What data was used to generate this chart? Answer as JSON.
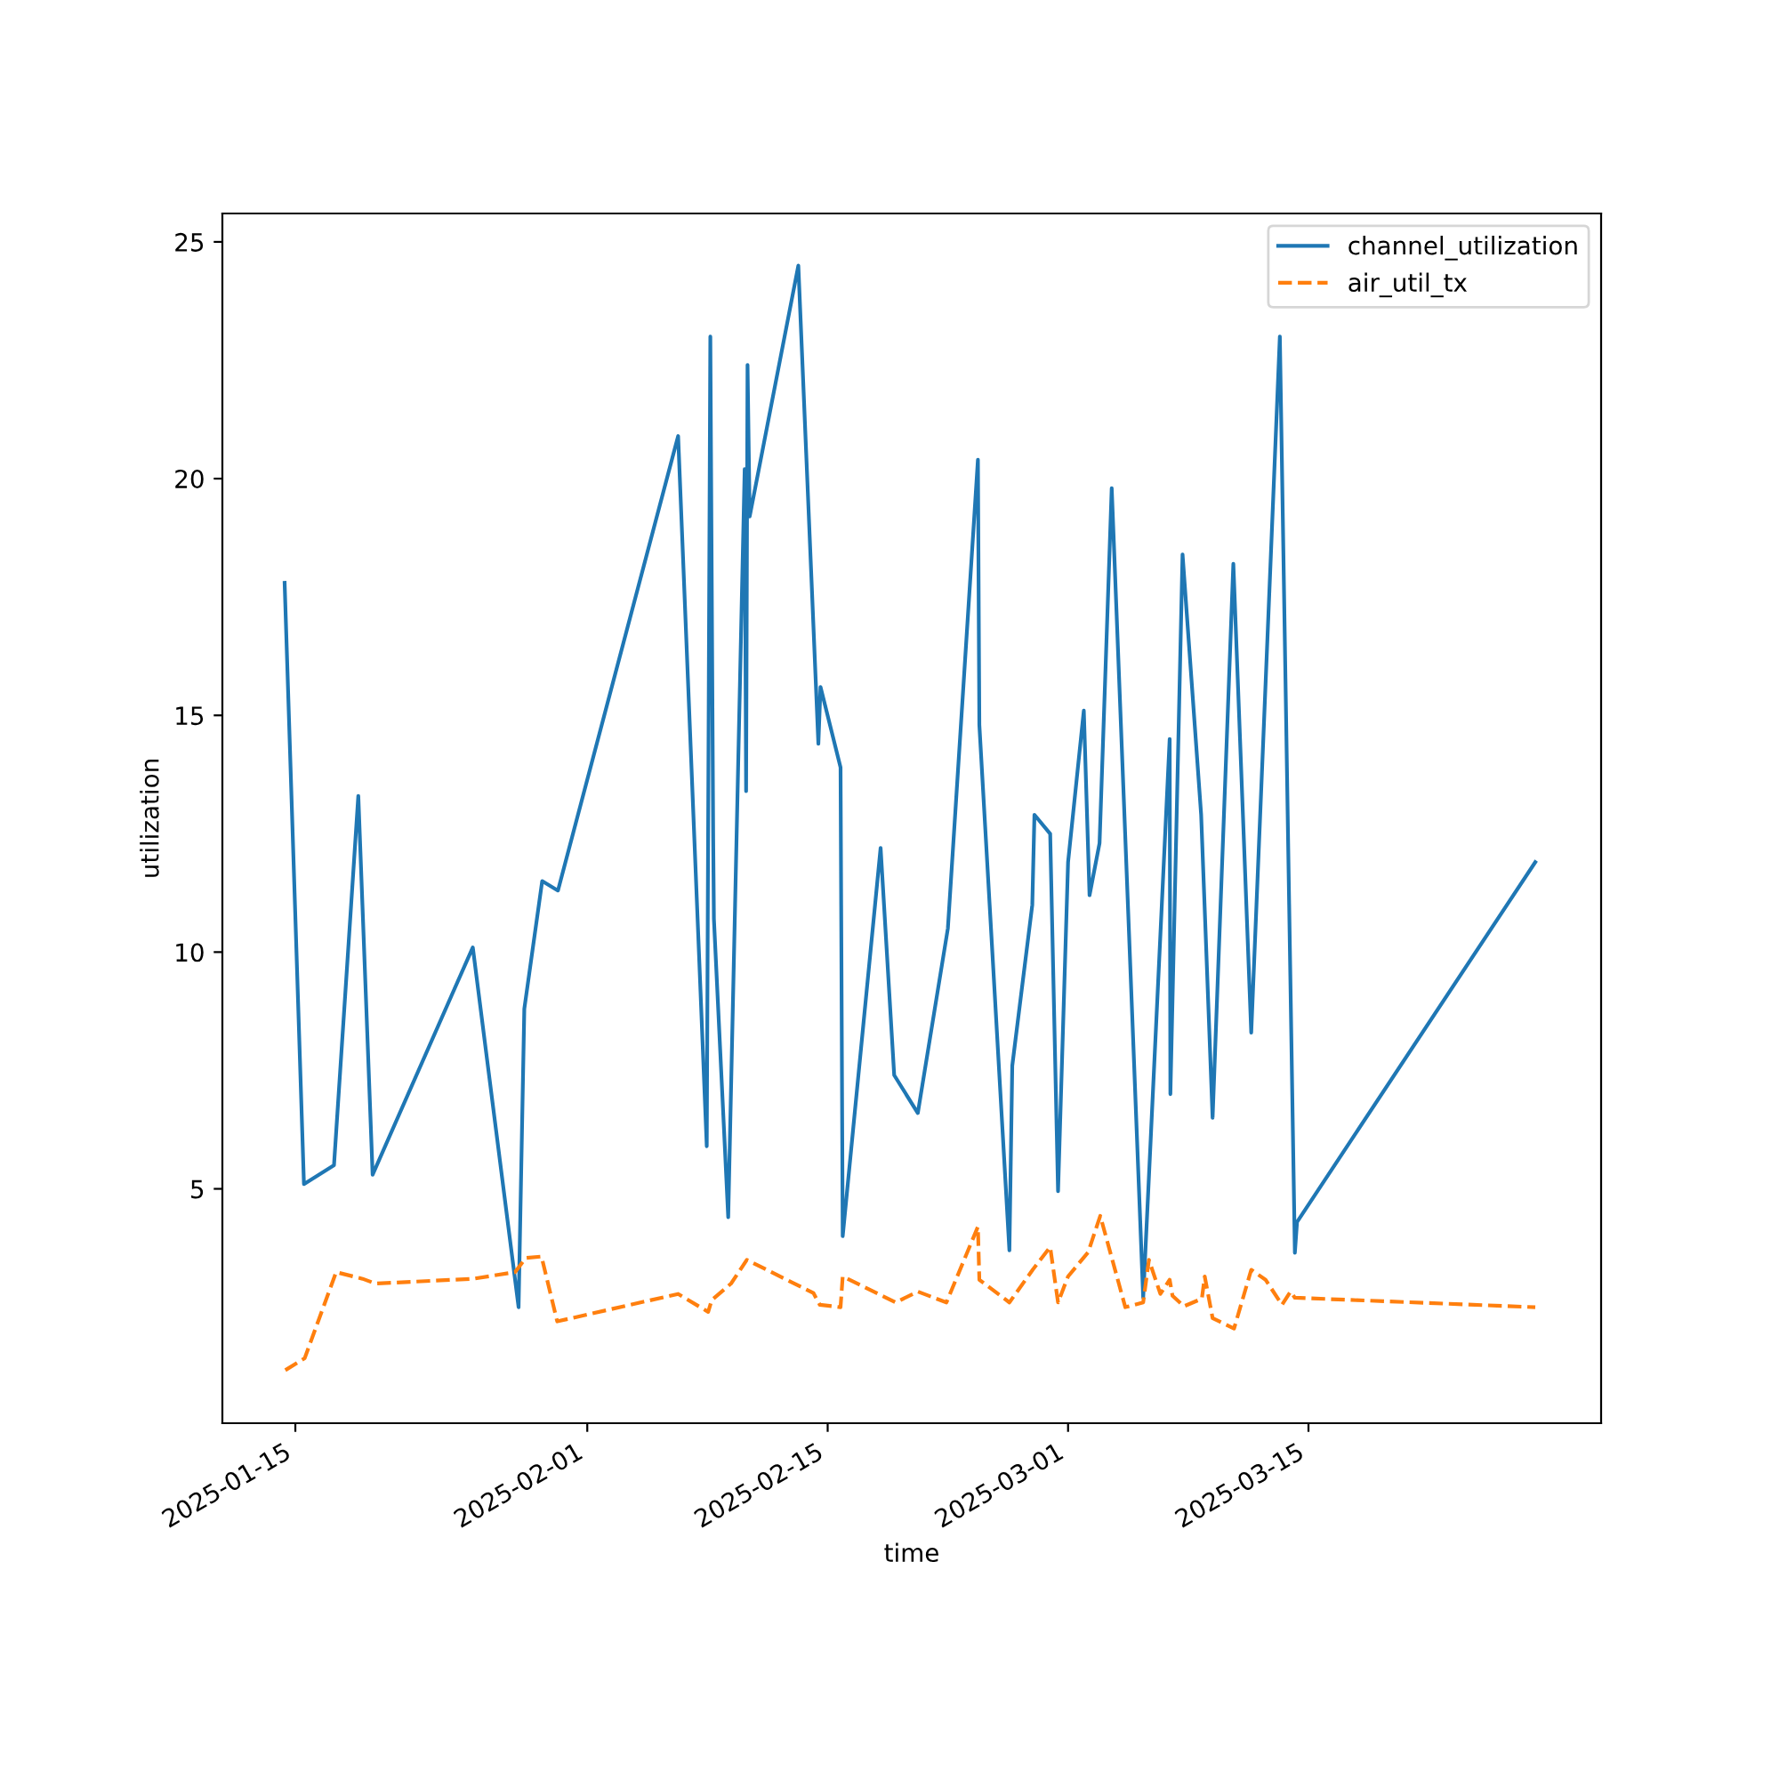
{
  "chart_data": {
    "type": "line",
    "xlabel": "time",
    "ylabel": "utilization",
    "xlim": [
      "2025-01-10T18:00",
      "2025-04-01T01:00"
    ],
    "xticks": [
      "2025-01-15",
      "2025-02-01",
      "2025-02-15",
      "2025-03-01",
      "2025-03-15"
    ],
    "ylim": [
      0.05,
      25.6
    ],
    "yticks": [
      5,
      10,
      15,
      20,
      25
    ],
    "grid": false,
    "legend": "top right",
    "series": [
      {
        "name": "channel_utilization",
        "color": "#1f77b4",
        "line_style": "solid",
        "x": [
          "2025-01-14T09:00",
          "2025-01-15T12:00",
          "2025-01-17T06:00",
          "2025-01-18T16:00",
          "2025-01-19T12:00",
          "2025-01-25T08:00",
          "2025-01-28T00:00",
          "2025-01-28T08:00",
          "2025-01-29T09:00",
          "2025-01-30T07:00",
          "2025-02-06T07:00",
          "2025-02-07T23:00",
          "2025-02-08T04:00",
          "2025-02-08T08:00",
          "2025-02-08T09:00",
          "2025-02-09T05:00",
          "2025-02-10T04:00",
          "2025-02-10T06:00",
          "2025-02-10T08:00",
          "2025-02-10T11:00",
          "2025-02-13T07:00",
          "2025-02-14T11:00",
          "2025-02-14T14:00",
          "2025-02-15T18:00",
          "2025-02-15T21:00",
          "2025-02-18T02:00",
          "2025-02-18T21:00",
          "2025-02-20T06:00",
          "2025-02-22T00:00",
          "2025-02-23T18:00",
          "2025-02-23T20:00",
          "2025-02-25T14:00",
          "2025-02-25T18:00",
          "2025-02-26T22:00",
          "2025-02-27T01:00",
          "2025-02-27T23:00",
          "2025-02-28T10:00",
          "2025-03-01T00:00",
          "2025-03-01T22:00",
          "2025-03-02T06:00",
          "2025-03-02T20:00",
          "2025-03-03T13:00",
          "2025-03-05T09:00",
          "2025-03-06T22:00",
          "2025-03-06T23:00",
          "2025-03-07T16:00",
          "2025-03-08T18:00",
          "2025-03-09T10:00",
          "2025-03-10T15:00",
          "2025-03-11T16:00",
          "2025-03-13T08:00",
          "2025-03-14T05:00",
          "2025-03-14T08:00",
          "2025-03-28T05:00"
        ],
        "values": [
          17.8,
          5.1,
          5.5,
          13.3,
          5.3,
          10.1,
          2.5,
          8.8,
          11.5,
          11.3,
          20.9,
          5.9,
          23.0,
          12.4,
          10.7,
          4.4,
          20.2,
          13.4,
          22.4,
          19.2,
          24.5,
          14.4,
          15.6,
          13.9,
          4.0,
          12.2,
          7.4,
          6.6,
          10.5,
          20.4,
          14.8,
          3.7,
          7.6,
          11.0,
          12.9,
          12.5,
          4.95,
          11.9,
          15.1,
          11.2,
          12.3,
          19.8,
          2.7,
          14.5,
          7.0,
          18.4,
          12.9,
          6.5,
          18.2,
          8.3,
          23.0,
          3.65,
          4.3,
          11.9
        ]
      },
      {
        "name": "air_util_tx",
        "color": "#ff7f0e",
        "line_style": "dashed",
        "x": [
          "2025-01-14T10:00",
          "2025-01-15T13:00",
          "2025-01-17T09:00",
          "2025-01-18T22:00",
          "2025-01-19T16:00",
          "2025-01-25T08:00",
          "2025-01-27T19:00",
          "2025-01-28T10:00",
          "2025-01-29T08:00",
          "2025-01-30T06:00",
          "2025-02-06T07:00",
          "2025-02-08T01:00",
          "2025-02-08T06:00",
          "2025-02-09T09:00",
          "2025-02-10T07:00",
          "2025-02-14T04:00",
          "2025-02-14T13:00",
          "2025-02-15T18:00",
          "2025-02-15T21:00",
          "2025-02-18T23:00",
          "2025-02-20T06:00",
          "2025-02-21T22:00",
          "2025-02-23T18:00",
          "2025-02-23T20:00",
          "2025-02-25T14:00",
          "2025-02-26T23:00",
          "2025-02-27T23:00",
          "2025-02-28T10:00",
          "2025-03-01T00:00",
          "2025-03-02T04:00",
          "2025-03-02T21:00",
          "2025-03-04T08:00",
          "2025-03-05T09:00",
          "2025-03-05T17:00",
          "2025-03-06T09:00",
          "2025-03-06T22:00",
          "2025-03-07T02:00",
          "2025-03-07T18:00",
          "2025-03-08T19:00",
          "2025-03-08T23:00",
          "2025-03-09T10:00",
          "2025-03-10T16:00",
          "2025-03-11T16:00",
          "2025-03-12T12:00",
          "2025-03-13T11:00",
          "2025-03-13T23:00",
          "2025-03-14T05:00",
          "2025-03-28T05:00"
        ],
        "values": [
          1.17,
          1.42,
          3.24,
          3.1,
          3.0,
          3.1,
          3.24,
          3.54,
          3.57,
          2.2,
          2.78,
          2.4,
          2.65,
          3.0,
          3.5,
          2.8,
          2.55,
          2.5,
          3.15,
          2.6,
          2.83,
          2.6,
          4.2,
          3.08,
          2.6,
          3.3,
          3.77,
          2.6,
          3.15,
          3.66,
          4.43,
          2.5,
          2.6,
          3.5,
          2.78,
          3.08,
          2.74,
          2.52,
          2.68,
          3.15,
          2.27,
          2.05,
          3.29,
          3.08,
          2.55,
          2.83,
          2.7,
          2.5
        ]
      }
    ]
  }
}
